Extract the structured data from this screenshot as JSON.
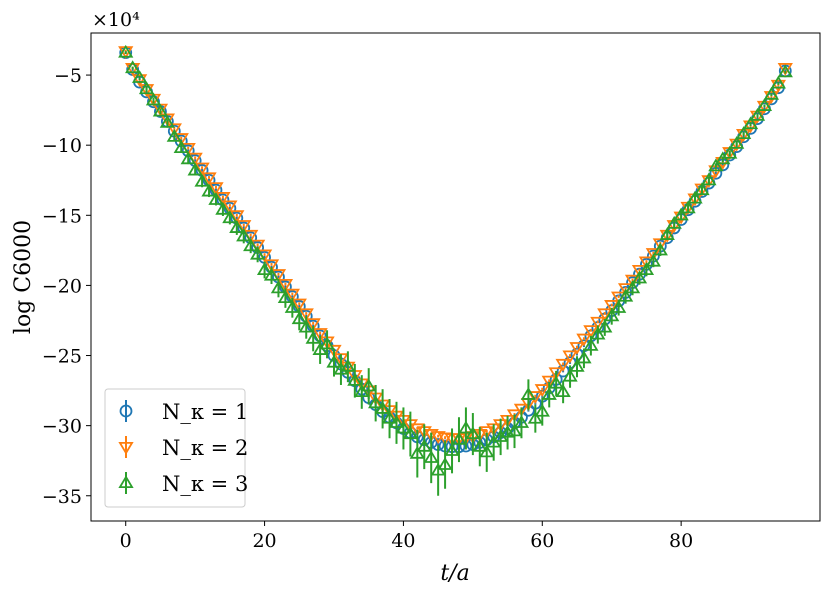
{
  "chart_data": {
    "type": "scatter",
    "xlabel": "t/a",
    "ylabel": "log C6000",
    "y_scale_label": "×10⁴",
    "xlim": [
      -5,
      100
    ],
    "ylim": [
      -36.8,
      -2.0
    ],
    "xticks": [
      0,
      20,
      40,
      60,
      80
    ],
    "yticks": [
      -5,
      -10,
      -15,
      -20,
      -25,
      -30,
      -35
    ],
    "x": [
      0,
      1,
      2,
      3,
      4,
      5,
      6,
      7,
      8,
      9,
      10,
      11,
      12,
      13,
      14,
      15,
      16,
      17,
      18,
      19,
      20,
      21,
      22,
      23,
      24,
      25,
      26,
      27,
      28,
      29,
      30,
      31,
      32,
      33,
      34,
      35,
      36,
      37,
      38,
      39,
      40,
      41,
      42,
      43,
      44,
      45,
      46,
      47,
      48,
      49,
      50,
      51,
      52,
      53,
      54,
      55,
      56,
      57,
      58,
      59,
      60,
      61,
      62,
      63,
      64,
      65,
      66,
      67,
      68,
      69,
      70,
      71,
      72,
      73,
      74,
      75,
      76,
      77,
      78,
      79,
      80,
      81,
      82,
      83,
      84,
      85,
      86,
      87,
      88,
      89,
      90,
      91,
      92,
      93,
      94,
      95
    ],
    "series": [
      {
        "name": "N_κ = 1",
        "color": "#1f77b4",
        "marker": "circle",
        "values": [
          -3.4,
          -4.6,
          -5.5,
          -6.2,
          -6.9,
          -7.6,
          -8.3,
          -9.0,
          -9.7,
          -10.4,
          -11.1,
          -11.8,
          -12.5,
          -13.2,
          -13.9,
          -14.5,
          -15.2,
          -15.9,
          -16.6,
          -17.3,
          -18.0,
          -18.7,
          -19.4,
          -20.1,
          -20.8,
          -21.5,
          -22.2,
          -22.9,
          -23.6,
          -24.3,
          -25.0,
          -25.6,
          -26.2,
          -26.8,
          -27.4,
          -28.0,
          -28.5,
          -29.0,
          -29.4,
          -29.8,
          -30.2,
          -30.5,
          -30.8,
          -31.0,
          -31.2,
          -31.35,
          -31.45,
          -31.5,
          -31.5,
          -31.45,
          -31.35,
          -31.2,
          -31.0,
          -30.8,
          -30.5,
          -30.2,
          -29.8,
          -29.4,
          -28.9,
          -28.4,
          -27.9,
          -27.3,
          -26.7,
          -26.1,
          -25.5,
          -24.9,
          -24.3,
          -23.6,
          -23.0,
          -22.4,
          -21.8,
          -21.1,
          -20.5,
          -19.8,
          -19.2,
          -18.5,
          -17.9,
          -17.2,
          -16.6,
          -15.9,
          -15.3,
          -14.6,
          -14.0,
          -13.3,
          -12.7,
          -12.0,
          -11.4,
          -10.7,
          -10.1,
          -9.4,
          -8.8,
          -8.1,
          -7.4,
          -6.7,
          -5.9,
          -4.7
        ],
        "errors": [
          0.1,
          0.1,
          0.1,
          0.1,
          0.1,
          0.1,
          0.1,
          0.1,
          0.1,
          0.1,
          0.1,
          0.1,
          0.1,
          0.1,
          0.1,
          0.1,
          0.1,
          0.1,
          0.1,
          0.1,
          0.1,
          0.1,
          0.1,
          0.1,
          0.1,
          0.1,
          0.1,
          0.1,
          0.1,
          0.1,
          0.1,
          0.1,
          0.1,
          0.1,
          0.1,
          0.1,
          0.1,
          0.1,
          0.1,
          0.1,
          0.1,
          0.1,
          0.1,
          0.1,
          0.1,
          0.1,
          0.1,
          0.1,
          0.1,
          0.1,
          0.1,
          0.1,
          0.1,
          0.1,
          0.1,
          0.1,
          0.1,
          0.1,
          0.1,
          0.1,
          0.1,
          0.1,
          0.1,
          0.1,
          0.1,
          0.1,
          0.1,
          0.1,
          0.1,
          0.1,
          0.1,
          0.1,
          0.1,
          0.1,
          0.1,
          0.1,
          0.1,
          0.1,
          0.1,
          0.1,
          0.1,
          0.1,
          0.1,
          0.1,
          0.1,
          0.1,
          0.1,
          0.1,
          0.1,
          0.1,
          0.1,
          0.1,
          0.1,
          0.1,
          0.1,
          0.1
        ]
      },
      {
        "name": "N_κ = 2",
        "color": "#ff7f0e",
        "marker": "triangle-down",
        "values": [
          -3.3,
          -4.5,
          -5.3,
          -6.0,
          -6.7,
          -7.4,
          -8.1,
          -8.8,
          -9.5,
          -10.2,
          -10.9,
          -11.6,
          -12.3,
          -13.0,
          -13.7,
          -14.3,
          -15.0,
          -15.7,
          -16.4,
          -17.1,
          -17.8,
          -18.5,
          -19.2,
          -19.9,
          -20.6,
          -21.3,
          -22.0,
          -22.7,
          -23.4,
          -24.0,
          -24.6,
          -25.2,
          -25.8,
          -26.4,
          -27.0,
          -27.5,
          -28.0,
          -28.5,
          -28.9,
          -29.3,
          -29.6,
          -29.9,
          -30.2,
          -30.4,
          -30.6,
          -30.75,
          -30.85,
          -30.9,
          -30.9,
          -30.85,
          -30.75,
          -30.6,
          -30.4,
          -30.2,
          -29.9,
          -29.6,
          -29.2,
          -28.8,
          -28.4,
          -27.9,
          -27.4,
          -26.8,
          -26.2,
          -25.6,
          -25.0,
          -24.4,
          -23.8,
          -23.2,
          -22.6,
          -22.0,
          -21.4,
          -20.8,
          -20.2,
          -19.6,
          -18.9,
          -18.3,
          -17.7,
          -17.0,
          -16.4,
          -15.7,
          -15.1,
          -14.4,
          -13.8,
          -13.1,
          -12.5,
          -11.8,
          -11.2,
          -10.5,
          -9.9,
          -9.2,
          -8.6,
          -7.9,
          -7.2,
          -6.5,
          -5.7,
          -4.5
        ],
        "errors": [
          0.1,
          0.1,
          0.1,
          0.1,
          0.1,
          0.1,
          0.1,
          0.1,
          0.1,
          0.1,
          0.1,
          0.1,
          0.1,
          0.1,
          0.1,
          0.1,
          0.1,
          0.1,
          0.1,
          0.1,
          0.1,
          0.1,
          0.1,
          0.1,
          0.1,
          0.1,
          0.1,
          0.1,
          0.1,
          0.1,
          0.1,
          0.1,
          0.1,
          0.1,
          0.1,
          0.1,
          0.1,
          0.1,
          0.1,
          0.1,
          0.1,
          0.1,
          0.1,
          0.1,
          0.1,
          0.1,
          0.1,
          0.1,
          0.1,
          0.1,
          0.1,
          0.1,
          0.1,
          0.1,
          0.1,
          0.1,
          0.1,
          0.1,
          0.1,
          0.1,
          0.1,
          0.1,
          0.1,
          0.1,
          0.1,
          0.1,
          0.1,
          0.1,
          0.1,
          0.1,
          0.1,
          0.1,
          0.1,
          0.1,
          0.1,
          0.1,
          0.1,
          0.1,
          0.1,
          0.1,
          0.1,
          0.1,
          0.1,
          0.1,
          0.1,
          0.1,
          0.1,
          0.1,
          0.1,
          0.1,
          0.1,
          0.1,
          0.1,
          0.1,
          0.1,
          0.1
        ]
      },
      {
        "name": "N_κ = 3",
        "color": "#2ca02c",
        "marker": "triangle-up",
        "values": [
          -3.4,
          -4.5,
          -5.2,
          -6.0,
          -6.8,
          -7.6,
          -8.4,
          -9.4,
          -10.2,
          -11.0,
          -11.8,
          -12.6,
          -13.3,
          -13.9,
          -14.6,
          -15.2,
          -15.9,
          -16.5,
          -17.2,
          -17.8,
          -18.9,
          -19.3,
          -20.2,
          -20.9,
          -21.6,
          -22.4,
          -23.0,
          -23.8,
          -24.6,
          -24.2,
          -25.5,
          -26.0,
          -25.8,
          -26.8,
          -27.6,
          -27.2,
          -28.4,
          -28.8,
          -29.5,
          -29.8,
          -30.2,
          -30.6,
          -32.0,
          -31.5,
          -32.3,
          -33.2,
          -32.8,
          -31.8,
          -31.0,
          -30.2,
          -30.6,
          -31.5,
          -31.9,
          -31.2,
          -30.8,
          -30.5,
          -30.4,
          -29.8,
          -27.8,
          -29.5,
          -29.0,
          -27.8,
          -27.0,
          -27.6,
          -26.5,
          -25.8,
          -25.2,
          -24.3,
          -23.5,
          -23.0,
          -22.2,
          -21.6,
          -20.8,
          -20.2,
          -19.5,
          -18.9,
          -18.3,
          -17.5,
          -16.4,
          -15.6,
          -15.0,
          -14.5,
          -13.8,
          -13.2,
          -12.5,
          -11.5,
          -11.0,
          -10.6,
          -9.9,
          -9.2,
          -8.5,
          -7.9,
          -7.2,
          -6.4,
          -5.6,
          -4.8
        ],
        "errors": [
          0.1,
          0.1,
          0.15,
          0.2,
          0.2,
          0.2,
          0.25,
          0.3,
          0.3,
          0.35,
          0.35,
          0.4,
          0.4,
          0.4,
          0.45,
          0.45,
          0.5,
          0.5,
          0.5,
          0.55,
          0.6,
          0.6,
          0.65,
          0.7,
          0.7,
          0.8,
          0.8,
          0.9,
          1.0,
          1.0,
          1.0,
          1.1,
          1.1,
          1.2,
          1.2,
          1.3,
          1.3,
          1.4,
          1.4,
          1.5,
          1.5,
          1.6,
          1.7,
          1.6,
          1.8,
          1.8,
          1.7,
          1.6,
          1.6,
          1.5,
          1.5,
          1.4,
          1.4,
          1.3,
          1.3,
          1.2,
          1.2,
          1.1,
          1.1,
          1.0,
          1.0,
          0.9,
          0.9,
          0.8,
          0.8,
          0.75,
          0.7,
          0.7,
          0.65,
          0.6,
          0.6,
          0.55,
          0.5,
          0.5,
          0.45,
          0.45,
          0.4,
          0.4,
          0.35,
          0.35,
          0.3,
          0.3,
          0.3,
          0.25,
          0.25,
          0.2,
          0.2,
          0.2,
          0.2,
          0.15,
          0.15,
          0.15,
          0.1,
          0.1,
          0.1,
          0.1
        ]
      }
    ],
    "legend": {
      "position": "lower-left",
      "entries": [
        "N_κ = 1",
        "N_κ = 2",
        "N_κ = 3"
      ]
    },
    "grid": false
  }
}
